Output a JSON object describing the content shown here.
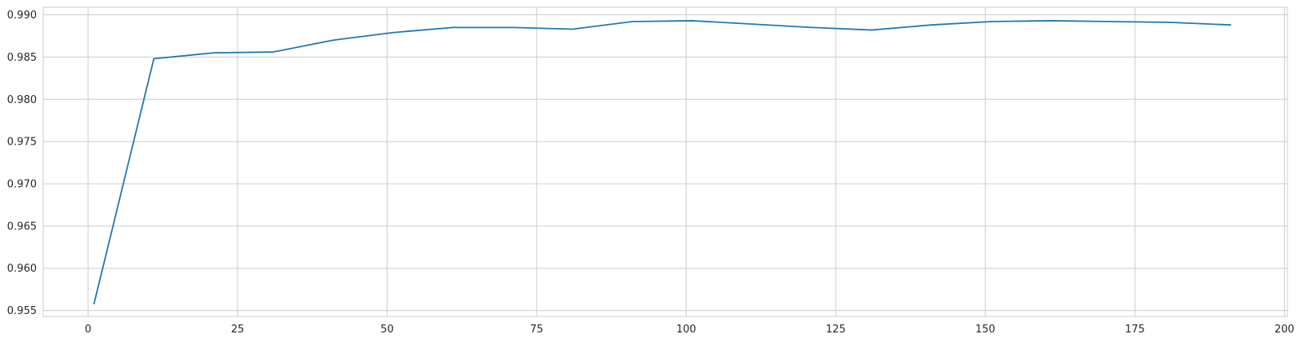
{
  "chart_data": {
    "type": "line",
    "title": "",
    "xlabel": "",
    "ylabel": "",
    "xlim": [
      -7.5,
      200.5
    ],
    "ylim": [
      0.9543,
      0.9909
    ],
    "xticks": [
      0,
      25,
      50,
      75,
      100,
      125,
      150,
      175,
      200
    ],
    "yticks": [
      0.955,
      0.96,
      0.965,
      0.97,
      0.975,
      0.98,
      0.985,
      0.99
    ],
    "xtick_labels": [
      "0",
      "25",
      "50",
      "75",
      "100",
      "125",
      "150",
      "175",
      "200"
    ],
    "ytick_labels": [
      "0.955",
      "0.960",
      "0.965",
      "0.970",
      "0.975",
      "0.980",
      "0.985",
      "0.990"
    ],
    "grid": true,
    "series": [
      {
        "color": "#1f77b4",
        "x": [
          1,
          11,
          21,
          31,
          41,
          51,
          61,
          71,
          81,
          91,
          101,
          111,
          121,
          131,
          141,
          151,
          161,
          171,
          181,
          191
        ],
        "y": [
          0.9558,
          0.9848,
          0.9855,
          0.9856,
          0.987,
          0.9879,
          0.9885,
          0.9885,
          0.9883,
          0.9892,
          0.9893,
          0.9889,
          0.9885,
          0.9882,
          0.9888,
          0.9892,
          0.9893,
          0.9892,
          0.9891,
          0.9888
        ]
      }
    ]
  }
}
